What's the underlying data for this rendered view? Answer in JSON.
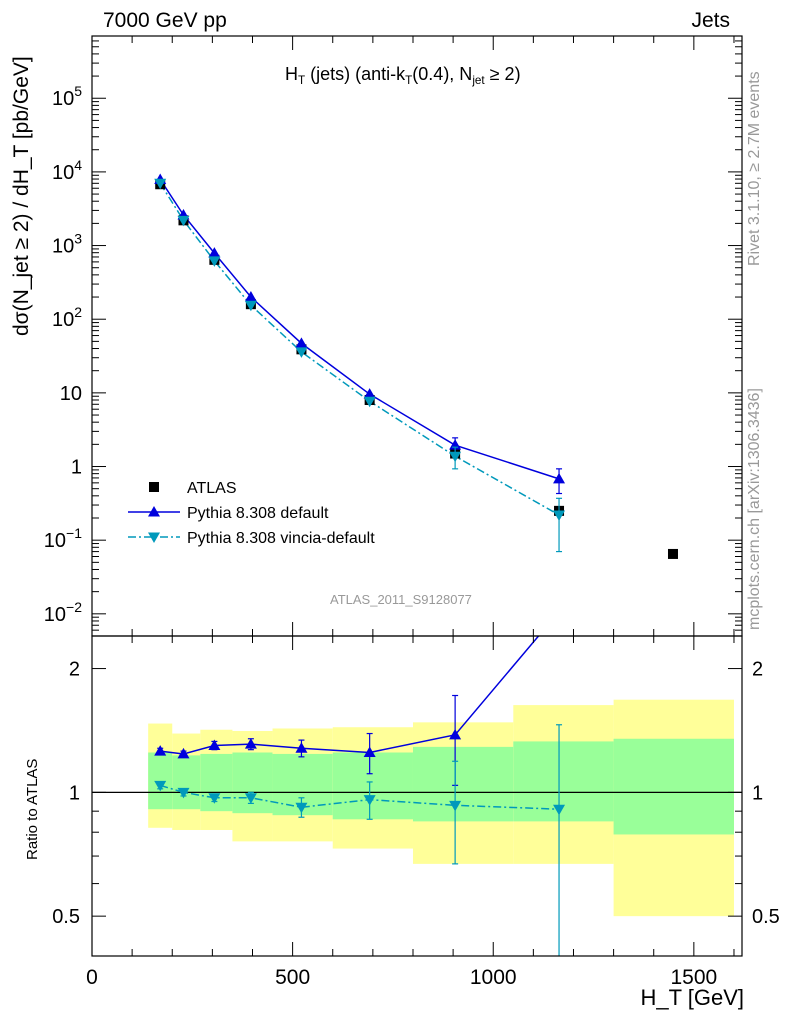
{
  "header": {
    "left": "7000 GeV pp",
    "right": "Jets"
  },
  "plot_title": {
    "prefix": "H",
    "prefix_sub": "T",
    "mid": " (jets) (anti-k",
    "mid_sub": "T",
    "tail": "(0.4), N",
    "tail_sub": "jet",
    "end": " ≥ 2)"
  },
  "watermark": "ATLAS_2011_S9128077",
  "side_text": {
    "rivet": "Rivet 3.1.10, ≥ 2.7M events",
    "mcplots": "mcplots.cern.ch [arXiv:1306.3436]"
  },
  "axes": {
    "main_ylabel": "dσ(N_jet ≥ 2) / dH_T [pb/GeV]",
    "ratio_ylabel": "Ratio to ATLAS",
    "xlabel": "H_T [GeV]"
  },
  "legend": [
    {
      "label": "ATLAS",
      "color": "#000000",
      "marker": "square"
    },
    {
      "label": "Pythia 8.308 default",
      "color": "#0000dd",
      "marker": "triangle-up"
    },
    {
      "label": "Pythia 8.308 vincia-default",
      "color": "#0099bb",
      "marker": "triangle-down"
    }
  ],
  "chart_data": {
    "type": "line",
    "x_range": [
      0,
      1620
    ],
    "main_y_range": [
      0.005,
      700000
    ],
    "main_y_scale": "log",
    "ratio_y_range": [
      0.4,
      2.4
    ],
    "ratio_y_scale": "log",
    "x_ticks": [
      0,
      500,
      1000,
      1500
    ],
    "main_y_ticks": [
      {
        "v": 0.01,
        "label": "10",
        "sup": "−2"
      },
      {
        "v": 0.1,
        "label": "10",
        "sup": "−1"
      },
      {
        "v": 1,
        "label": "1",
        "sup": ""
      },
      {
        "v": 10,
        "label": "10",
        "sup": ""
      },
      {
        "v": 100,
        "label": "10",
        "sup": "2"
      },
      {
        "v": 1000,
        "label": "10",
        "sup": "3"
      },
      {
        "v": 10000,
        "label": "10",
        "sup": "4"
      },
      {
        "v": 100000,
        "label": "10",
        "sup": "5"
      }
    ],
    "ratio_y_ticks": [
      {
        "v": 0.5,
        "label": "0.5"
      },
      {
        "v": 1,
        "label": "1"
      },
      {
        "v": 2,
        "label": "2"
      }
    ],
    "bins": [
      {
        "lo": 140,
        "hi": 200
      },
      {
        "lo": 200,
        "hi": 270
      },
      {
        "lo": 270,
        "hi": 350
      },
      {
        "lo": 350,
        "hi": 450
      },
      {
        "lo": 450,
        "hi": 600
      },
      {
        "lo": 600,
        "hi": 800
      },
      {
        "lo": 800,
        "hi": 1050
      },
      {
        "lo": 1050,
        "hi": 1300
      },
      {
        "lo": 1300,
        "hi": 1600
      }
    ],
    "atlas": {
      "name": "ATLAS",
      "x": [
        170,
        228,
        305,
        396,
        522,
        692,
        905,
        1164,
        1448
      ],
      "y": [
        6800,
        2200,
        640,
        160,
        39,
        8.0,
        1.5,
        0.25,
        0.065
      ]
    },
    "bands": {
      "inner": [
        {
          "lo": 0.91,
          "hi": 1.25
        },
        {
          "lo": 0.91,
          "hi": 1.23
        },
        {
          "lo": 0.9,
          "hi": 1.24
        },
        {
          "lo": 0.89,
          "hi": 1.25
        },
        {
          "lo": 0.88,
          "hi": 1.24
        },
        {
          "lo": 0.86,
          "hi": 1.25
        },
        {
          "lo": 0.85,
          "hi": 1.29
        },
        {
          "lo": 0.85,
          "hi": 1.33
        },
        {
          "lo": 0.79,
          "hi": 1.35
        }
      ],
      "outer": [
        {
          "lo": 0.82,
          "hi": 1.47
        },
        {
          "lo": 0.81,
          "hi": 1.39
        },
        {
          "lo": 0.81,
          "hi": 1.42
        },
        {
          "lo": 0.76,
          "hi": 1.41
        },
        {
          "lo": 0.76,
          "hi": 1.43
        },
        {
          "lo": 0.73,
          "hi": 1.44
        },
        {
          "lo": 0.67,
          "hi": 1.48
        },
        {
          "lo": 0.67,
          "hi": 1.63
        },
        {
          "lo": 0.5,
          "hi": 1.68
        }
      ]
    },
    "series": [
      {
        "name": "Pythia 8.308 default",
        "color": "#0000dd",
        "style": "solid",
        "marker": "triangle-up",
        "x": [
          170,
          228,
          305,
          396,
          522,
          692,
          905,
          1164
        ],
        "y": [
          7900,
          2600,
          790,
          200,
          47,
          9.6,
          1.95,
          0.68
        ],
        "y_err": [
          0,
          0,
          0,
          0,
          0,
          0,
          0.5,
          0.25
        ],
        "ratio": [
          1.26,
          1.24,
          1.3,
          1.31,
          1.28,
          1.25,
          1.38,
          2.75
        ],
        "ratio_err": [
          0.02,
          0.02,
          0.03,
          0.04,
          0.06,
          0.14,
          0.34,
          0.0
        ]
      },
      {
        "name": "Pythia 8.308 vincia-default",
        "color": "#0099bb",
        "style": "dashdot",
        "marker": "triangle-down",
        "x": [
          170,
          228,
          305,
          396,
          522,
          692,
          905,
          1164
        ],
        "y": [
          7000,
          2200,
          620,
          155,
          36,
          7.7,
          1.38,
          0.22
        ],
        "y_err": [
          0,
          0,
          0,
          0,
          0,
          0,
          0.45,
          0.15
        ],
        "ratio": [
          1.04,
          1.0,
          0.97,
          0.97,
          0.92,
          0.96,
          0.93,
          0.91
        ],
        "ratio_err": [
          0.02,
          0.02,
          0.02,
          0.03,
          0.05,
          0.1,
          0.26,
          0.55
        ]
      }
    ]
  }
}
